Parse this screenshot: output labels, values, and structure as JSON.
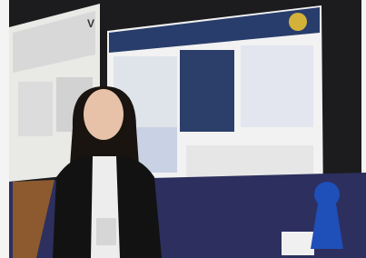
{
  "left_poster": {
    "logo": "V"
  }
}
